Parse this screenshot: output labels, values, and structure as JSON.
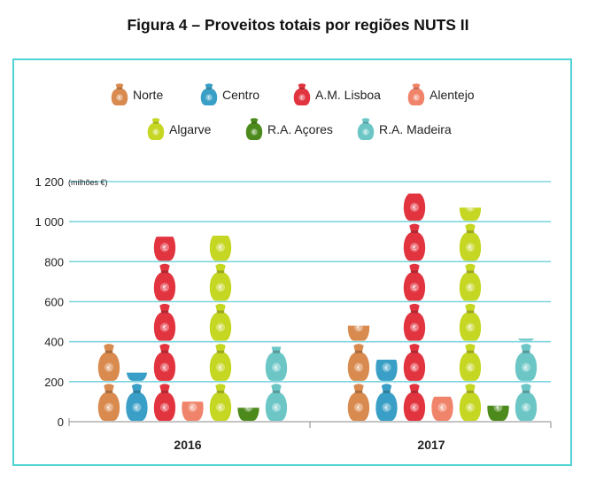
{
  "figure_title": "Figura 4 – Proveitos totais por regiões NUTS II",
  "chart_data": {
    "type": "bar",
    "style": "pictograph-stacked-money-bags",
    "categories": [
      "2016",
      "2017"
    ],
    "unit_label": "(milhões €)",
    "ylim": [
      0,
      1200
    ],
    "yticks": [
      0,
      200,
      400,
      600,
      800,
      1000,
      1200
    ],
    "ytick_labels": [
      "0",
      "200",
      "400",
      "600",
      "800",
      "1 000",
      "1 200"
    ],
    "bag_symbol": "€",
    "grid": true,
    "legend_position": "top",
    "series": [
      {
        "name": "Norte",
        "color": "#d98a4e",
        "values": [
          390,
          480
        ]
      },
      {
        "name": "Centro",
        "color": "#3a9fc6",
        "values": [
          245,
          310
        ]
      },
      {
        "name": "A.M. Lisboa",
        "color": "#e2343f",
        "values": [
          925,
          1140
        ]
      },
      {
        "name": "Alentejo",
        "color": "#f0846a",
        "values": [
          100,
          125
        ]
      },
      {
        "name": "Algarve",
        "color": "#c5d623",
        "values": [
          930,
          1070
        ]
      },
      {
        "name": "R.A. Açores",
        "color": "#4d8a1c",
        "values": [
          70,
          80
        ]
      },
      {
        "name": "R.A. Madeira",
        "color": "#6cc6c6",
        "values": [
          375,
          415
        ]
      }
    ]
  }
}
